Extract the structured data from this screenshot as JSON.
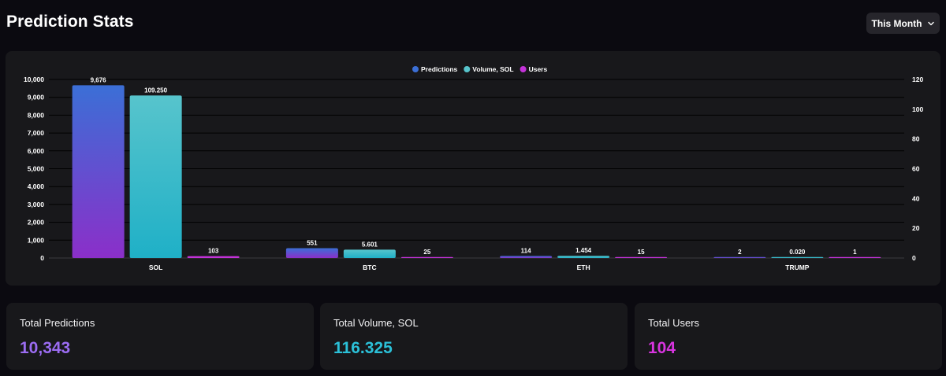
{
  "header": {
    "title": "Prediction Stats",
    "period_label": "This Month"
  },
  "chart_data": {
    "type": "bar",
    "categories": [
      "SOL",
      "BTC",
      "ETH",
      "TRUMP"
    ],
    "series": [
      {
        "name": "Predictions",
        "axis": "left",
        "values": [
          9676,
          551,
          114,
          2
        ],
        "labels": [
          "9,676",
          "551",
          "114",
          "2"
        ],
        "colors": [
          "#3b6fd6",
          "#8b2fc9"
        ]
      },
      {
        "name": "Volume, SOL",
        "axis": "right",
        "values": [
          109.25,
          5.601,
          1.454,
          0.02
        ],
        "labels": [
          "109.250",
          "5.601",
          "1.454",
          "0.020"
        ],
        "colors": [
          "#57c4cc",
          "#1fb0c7"
        ]
      },
      {
        "name": "Users",
        "axis": "left",
        "values": [
          103,
          25,
          15,
          1
        ],
        "labels": [
          "103",
          "25",
          "15",
          "1"
        ],
        "colors": [
          "#c332d8",
          "#c332d8"
        ]
      }
    ],
    "y_left": {
      "min": 0,
      "max": 10000,
      "ticks": [
        "0",
        "1,000",
        "2,000",
        "3,000",
        "4,000",
        "5,000",
        "6,000",
        "7,000",
        "8,000",
        "9,000",
        "10,000"
      ]
    },
    "y_right": {
      "min": 0,
      "max": 120,
      "ticks": [
        "0",
        "20",
        "40",
        "60",
        "80",
        "100",
        "120"
      ]
    },
    "grid": true,
    "legend": "top-center"
  },
  "summary": [
    {
      "label": "Total Predictions",
      "value": "10,343",
      "color": "#9b6cf2"
    },
    {
      "label": "Total Volume, SOL",
      "value": "116.325",
      "color": "#2bc0d8"
    },
    {
      "label": "Total Users",
      "value": "104",
      "color": "#d834e0"
    }
  ]
}
